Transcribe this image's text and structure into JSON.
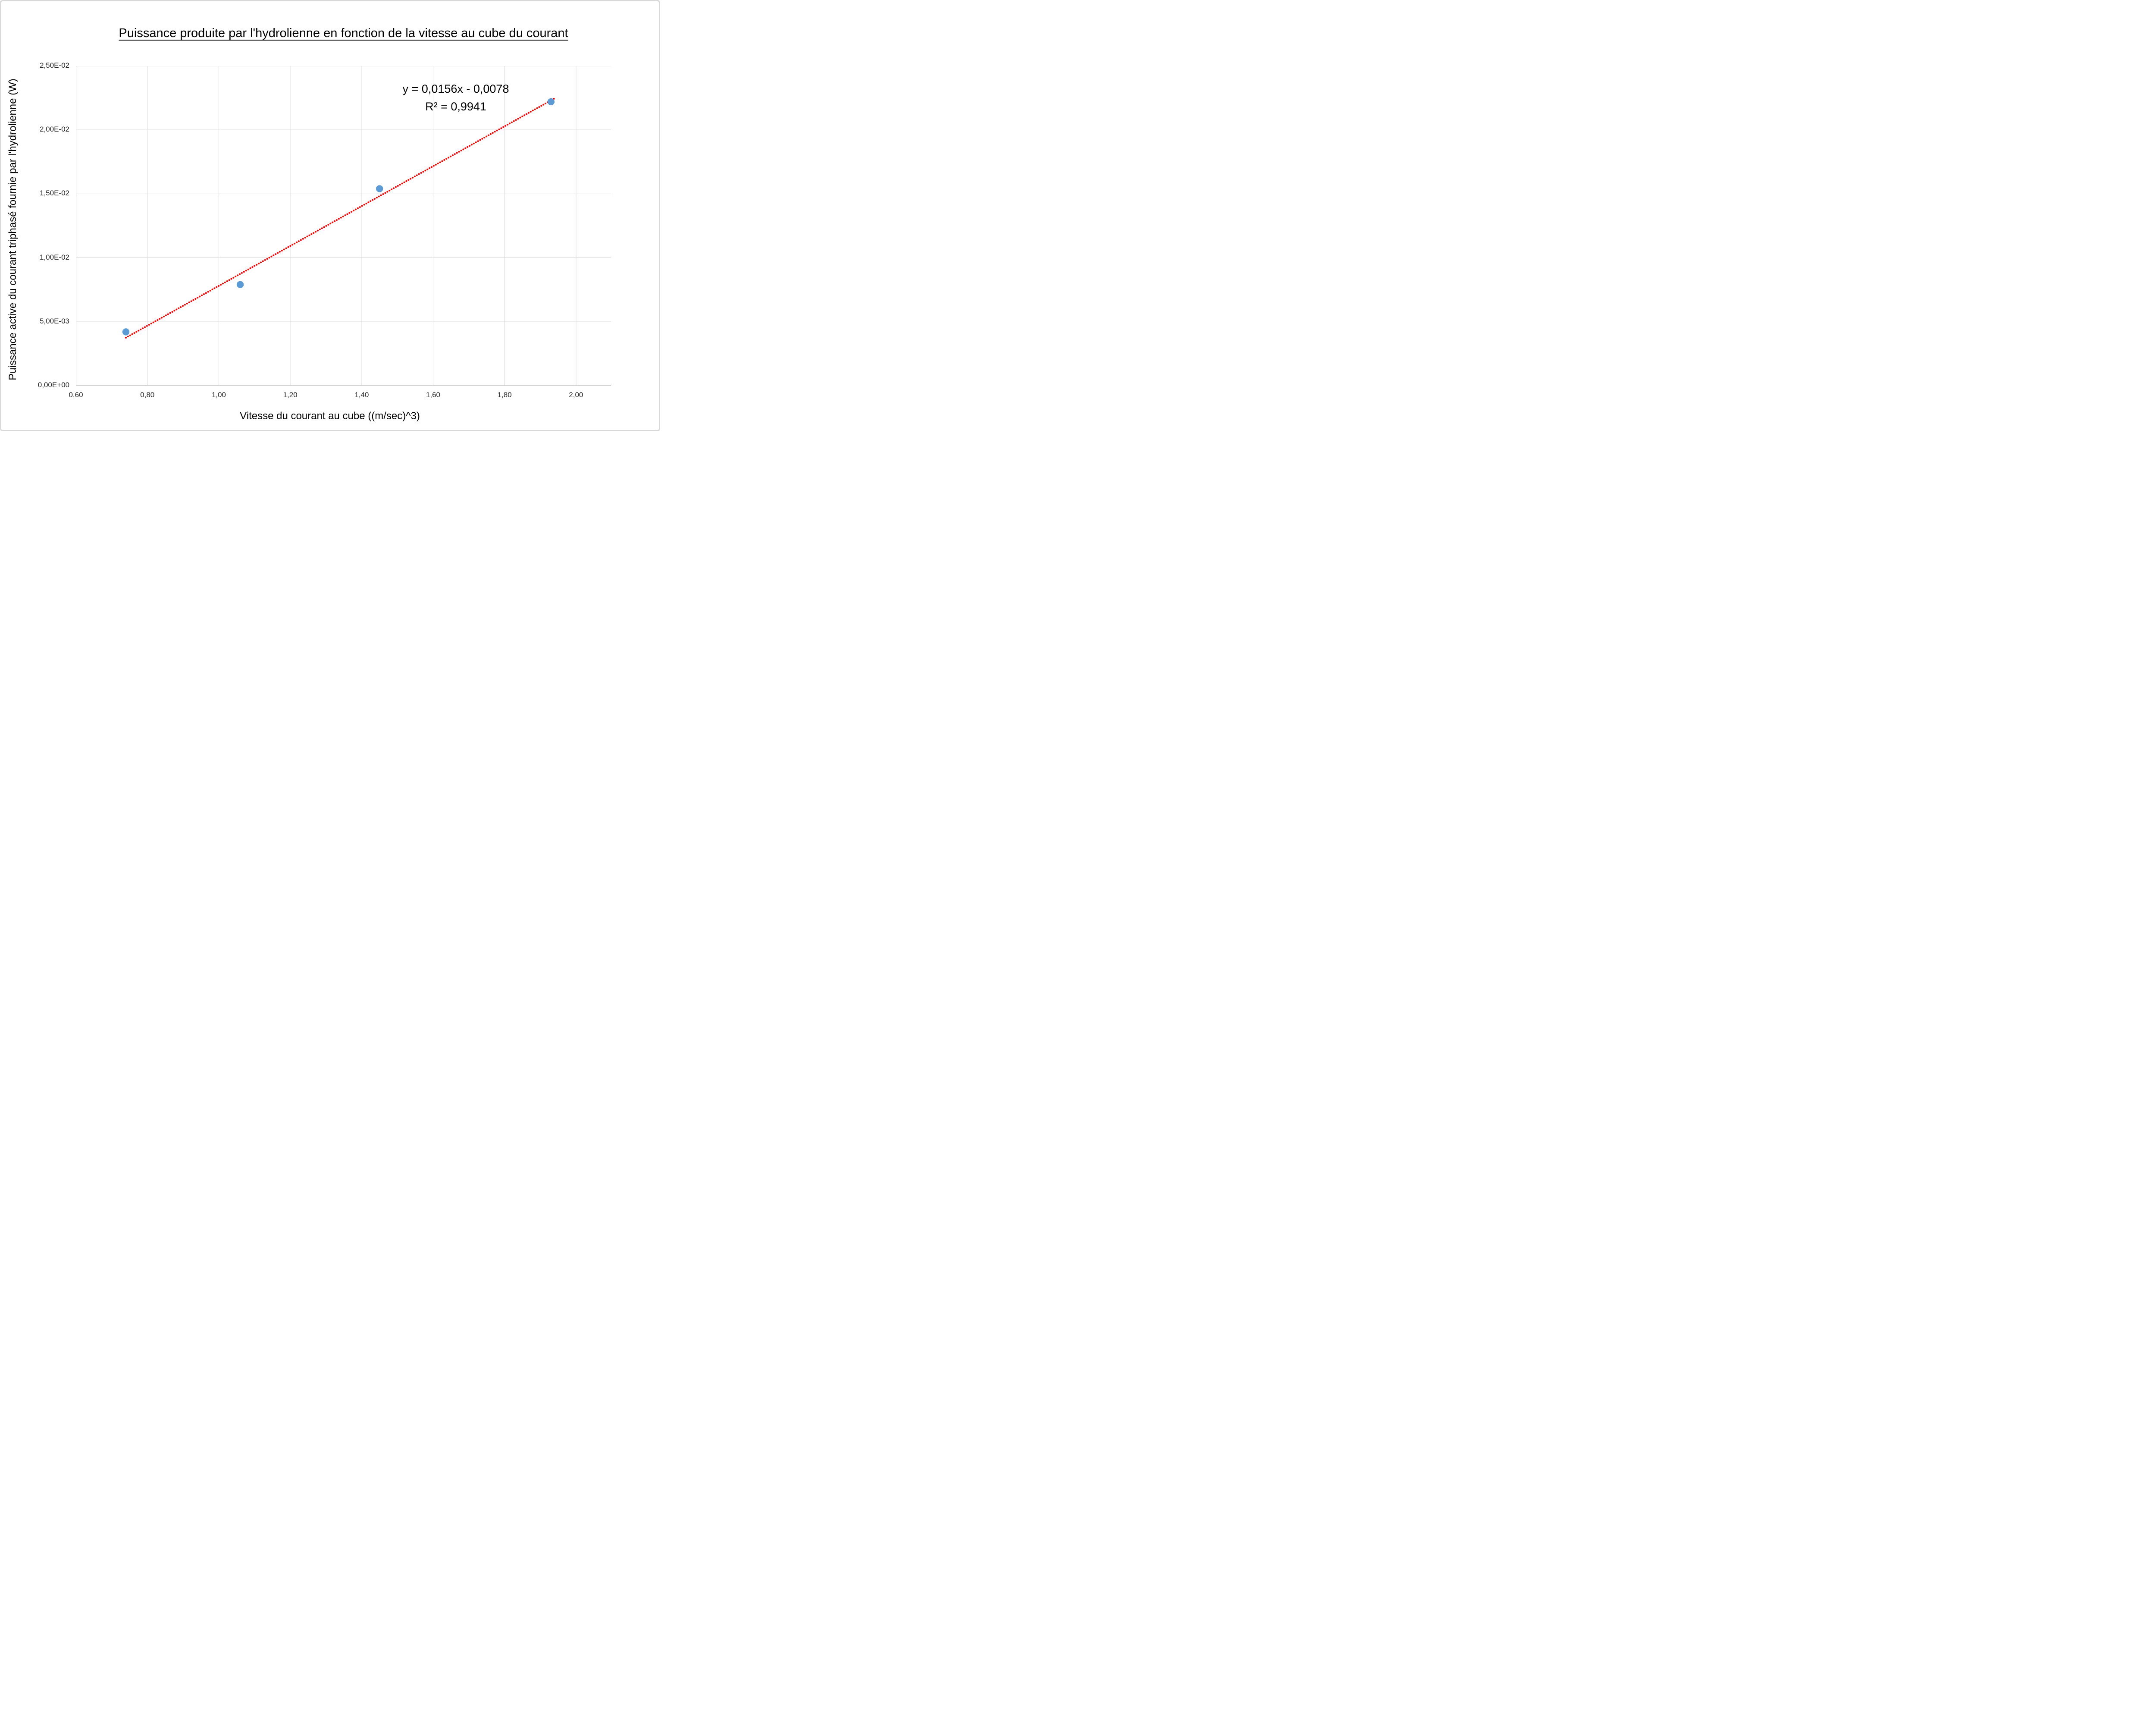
{
  "chart": {
    "title": "Puissance produite par l'hydrolienne en fonction de la vitesse au cube du courant",
    "annotation": {
      "equation": "y = 0,0156x - 0,0078",
      "r_squared": "R² = 0,9941"
    },
    "colors": {
      "marker": "#5B9BD5",
      "trendline": "#FF0000",
      "gridline": "#D9D9D9",
      "axis_line": "#BFBFBF",
      "tick_text": "#262626",
      "title_text": "#000000",
      "frame_border": "#D9D9D9"
    }
  },
  "chart_data": {
    "type": "scatter",
    "title": "Puissance produite par l'hydrolienne en fonction de la vitesse au cube du courant",
    "xlabel": "Vitesse du courant au cube ((m/sec)^3)",
    "ylabel": "Puissance active du courant triphasé fournie par l'hydrolienne (W)",
    "points": [
      {
        "x": 0.74,
        "y": 0.0042
      },
      {
        "x": 1.06,
        "y": 0.0079
      },
      {
        "x": 1.45,
        "y": 0.0154
      },
      {
        "x": 1.93,
        "y": 0.0222
      }
    ],
    "trendline": {
      "type": "linear",
      "slope": 0.0156,
      "intercept": -0.0078,
      "x_start": 0.74,
      "x_end": 1.94,
      "style": "dotted",
      "equation": "y = 0,0156x - 0,0078",
      "r2": 0.9941
    },
    "xlim": [
      0.6,
      2.098
    ],
    "ylim": [
      0,
      0.025
    ],
    "x_tick_values": [
      0.6,
      0.8,
      1.0,
      1.2,
      1.4,
      1.6,
      1.8,
      2.0
    ],
    "x_tick_labels": [
      "0,60",
      "0,80",
      "1,00",
      "1,20",
      "1,40",
      "1,60",
      "1,80",
      "2,00"
    ],
    "y_tick_values": [
      0,
      0.005,
      0.01,
      0.015,
      0.02,
      0.025
    ],
    "y_tick_labels": [
      "0,00E+00",
      "5,00E-03",
      "1,00E-02",
      "1,50E-02",
      "2,00E-02",
      "2,50E-02"
    ],
    "grid": true,
    "legend": false
  }
}
